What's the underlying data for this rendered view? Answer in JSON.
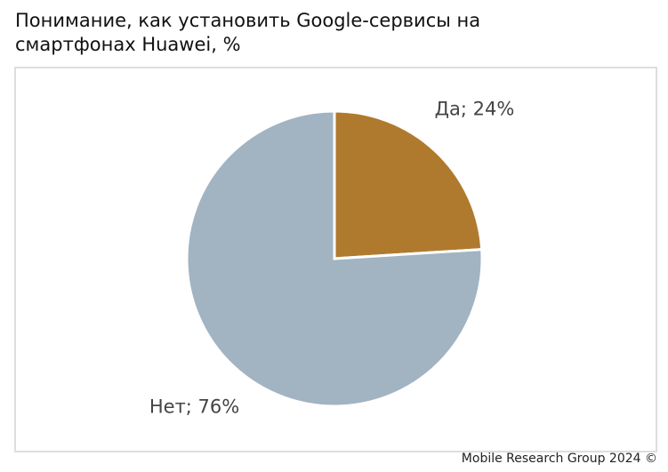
{
  "chart_data": {
    "type": "pie",
    "title": "Понимание, как установить Google-сервисы на смартфонах Huawei, %",
    "values": [
      24,
      76
    ],
    "value_labels": [
      "Да; 24%",
      "Нет; 76%"
    ],
    "colors": [
      "#b07a2e",
      "#a2b3c2"
    ],
    "source": "Mobile Research Group 2024 ©"
  }
}
